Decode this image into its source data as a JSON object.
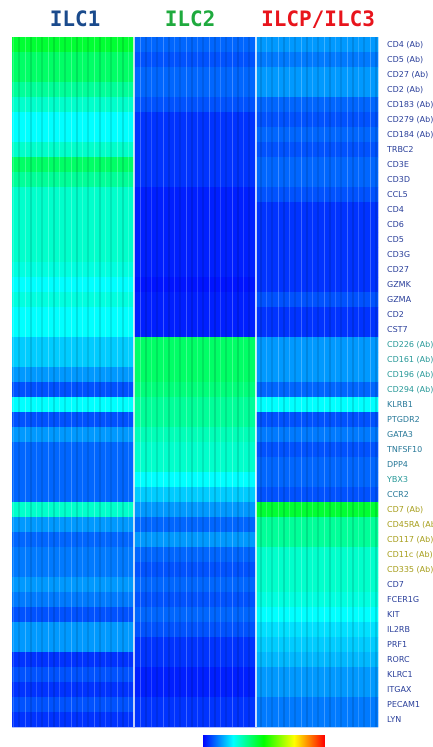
{
  "chart_data": {
    "type": "heatmap",
    "x": [
      "ILC1",
      "ILC2",
      "ILCP/ILC3"
    ],
    "x_colors": [
      "#1a4a8c",
      "#1faa3e",
      "#e8141c"
    ],
    "y": [
      "CD4 (Ab)",
      "CD5 (Ab)",
      "CD27 (Ab)",
      "CD2 (Ab)",
      "CD183 (Ab)",
      "CD279 (Ab)",
      "CD184 (Ab)",
      "TRBC2",
      "CD3E",
      "CD3D",
      "CCL5",
      "CD4",
      "CD6",
      "CD5",
      "CD3G",
      "CD27",
      "GZMK",
      "GZMA",
      "CD2",
      "CST7",
      "CD226 (Ab)",
      "CD161 (Ab)",
      "CD196 (Ab)",
      "CD294 (Ab)",
      "KLRB1",
      "PTGDR2",
      "GATA3",
      "TNFSF10",
      "DPP4",
      "YBX3",
      "CCR2",
      "CD7 (Ab)",
      "CD45RA (Ab",
      "CD117 (Ab)",
      "CD11c (Ab)",
      "CD335 (Ab)",
      "CD7",
      "FCER1G",
      "KIT",
      "IL2RB",
      "PRF1",
      "RORC",
      "KLRC1",
      "ITGAX",
      "PECAM1",
      "LYN"
    ],
    "y_colors": [
      "#2a3f9a",
      "#2a3f9a",
      "#2a3f9a",
      "#2a3f9a",
      "#2a3f9a",
      "#2a3f9a",
      "#2a3f9a",
      "#2a3f9a",
      "#2a3f9a",
      "#2a3f9a",
      "#2a3f9a",
      "#2a3f9a",
      "#2a3f9a",
      "#2a3f9a",
      "#2a3f9a",
      "#2a3f9a",
      "#2a3f9a",
      "#2a3f9a",
      "#2a3f9a",
      "#2a3f9a",
      "#2a9a9a",
      "#2a9a9a",
      "#2a9a9a",
      "#2a9a9a",
      "#2a7a9a",
      "#2a7a9a",
      "#2a7a9a",
      "#2a7a9a",
      "#2a7a9a",
      "#2a9a9a",
      "#2a7a9a",
      "#a8a020",
      "#a8a020",
      "#a8a020",
      "#a8a020",
      "#a8a020",
      "#2a3f9a",
      "#2a3f9a",
      "#2a3f9a",
      "#2a3f9a",
      "#2a3f9a",
      "#2a3f9a",
      "#2a3f9a",
      "#2a3f9a",
      "#2a3f9a",
      "#2a3f9a"
    ],
    "z": [
      [
        0.45,
        0.1,
        0.15
      ],
      [
        0.4,
        0.08,
        0.12
      ],
      [
        0.4,
        0.1,
        0.15
      ],
      [
        0.35,
        0.1,
        0.15
      ],
      [
        0.3,
        0.08,
        0.1
      ],
      [
        0.25,
        0.05,
        0.08
      ],
      [
        0.25,
        0.05,
        0.1
      ],
      [
        0.3,
        0.05,
        0.08
      ],
      [
        0.4,
        0.05,
        0.1
      ],
      [
        0.35,
        0.05,
        0.1
      ],
      [
        0.3,
        0.03,
        0.08
      ],
      [
        0.3,
        0.03,
        0.05
      ],
      [
        0.3,
        0.03,
        0.05
      ],
      [
        0.3,
        0.03,
        0.05
      ],
      [
        0.3,
        0.03,
        0.05
      ],
      [
        0.28,
        0.03,
        0.05
      ],
      [
        0.25,
        0.02,
        0.05
      ],
      [
        0.28,
        0.03,
        0.08
      ],
      [
        0.25,
        0.03,
        0.05
      ],
      [
        0.25,
        0.03,
        0.05
      ],
      [
        0.2,
        0.4,
        0.15
      ],
      [
        0.2,
        0.4,
        0.15
      ],
      [
        0.15,
        0.4,
        0.15
      ],
      [
        0.08,
        0.38,
        0.1
      ],
      [
        0.25,
        0.35,
        0.25
      ],
      [
        0.08,
        0.35,
        0.08
      ],
      [
        0.15,
        0.32,
        0.12
      ],
      [
        0.1,
        0.3,
        0.08
      ],
      [
        0.1,
        0.3,
        0.1
      ],
      [
        0.1,
        0.25,
        0.1
      ],
      [
        0.1,
        0.2,
        0.08
      ],
      [
        0.3,
        0.15,
        0.45
      ],
      [
        0.15,
        0.1,
        0.35
      ],
      [
        0.1,
        0.15,
        0.35
      ],
      [
        0.12,
        0.1,
        0.3
      ],
      [
        0.12,
        0.08,
        0.3
      ],
      [
        0.15,
        0.1,
        0.3
      ],
      [
        0.12,
        0.08,
        0.28
      ],
      [
        0.08,
        0.1,
        0.25
      ],
      [
        0.15,
        0.08,
        0.22
      ],
      [
        0.15,
        0.05,
        0.2
      ],
      [
        0.05,
        0.05,
        0.18
      ],
      [
        0.08,
        0.03,
        0.15
      ],
      [
        0.05,
        0.03,
        0.15
      ],
      [
        0.08,
        0.05,
        0.12
      ],
      [
        0.05,
        0.05,
        0.12
      ]
    ],
    "zlim": [
      0,
      1
    ],
    "colorscale": [
      "#0000ff",
      "#00ffff",
      "#00ff00",
      "#ffff00",
      "#ff0000"
    ]
  }
}
